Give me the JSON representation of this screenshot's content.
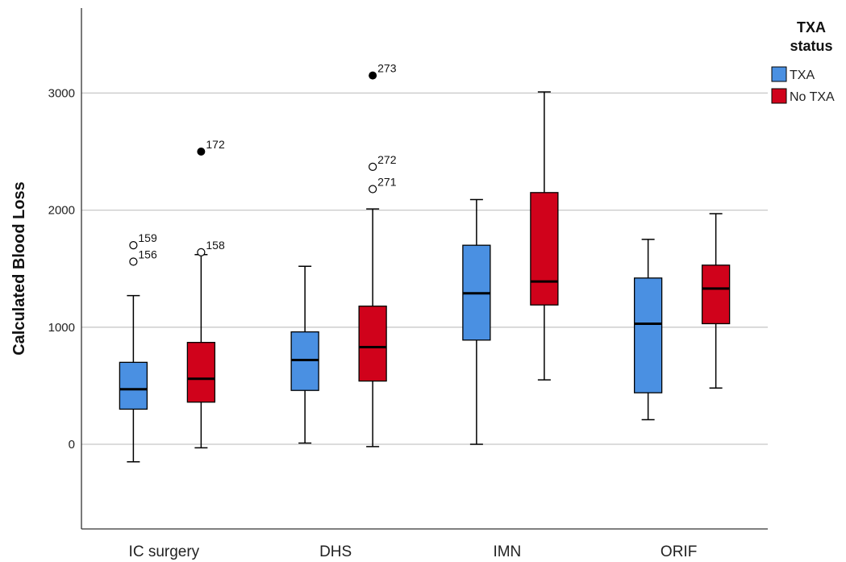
{
  "chart_data": {
    "type": "boxplot",
    "ylabel": "Calculated Blood Loss",
    "ylim": [
      -700,
      3750
    ],
    "yticks": [
      0,
      1000,
      2000,
      3000
    ],
    "grid": "horizontal",
    "legend": {
      "title_lines": [
        "TXA",
        "status"
      ],
      "placement": "right",
      "entries": [
        {
          "name": "TXA",
          "color": "#4a90e2"
        },
        {
          "name": "No TXA",
          "color": "#d0021b"
        }
      ]
    },
    "categories": [
      "IC surgery",
      "DHS",
      "IMN",
      "ORIF"
    ],
    "series": [
      {
        "name": "TXA",
        "color": "#4a90e2",
        "boxes": [
          {
            "min": -150,
            "q1": 300,
            "median": 470,
            "q3": 700,
            "max": 1270,
            "outliers": [
              {
                "value": 1700,
                "label": "159",
                "type": "open"
              },
              {
                "value": 1560,
                "label": "156",
                "type": "open"
              }
            ]
          },
          {
            "min": 10,
            "q1": 460,
            "median": 720,
            "q3": 960,
            "max": 1520,
            "outliers": []
          },
          {
            "min": 0,
            "q1": 890,
            "median": 1290,
            "q3": 1700,
            "max": 2090,
            "outliers": []
          },
          {
            "min": 210,
            "q1": 440,
            "median": 1030,
            "q3": 1420,
            "max": 1750,
            "outliers": []
          }
        ]
      },
      {
        "name": "No TXA",
        "color": "#d0021b",
        "boxes": [
          {
            "min": -30,
            "q1": 360,
            "median": 560,
            "q3": 870,
            "max": 1620,
            "outliers": [
              {
                "value": 1640,
                "label": "158",
                "type": "open"
              },
              {
                "value": 2500,
                "label": "172",
                "type": "filled"
              }
            ]
          },
          {
            "min": -20,
            "q1": 540,
            "median": 830,
            "q3": 1180,
            "max": 2010,
            "outliers": [
              {
                "value": 2180,
                "label": "271",
                "type": "open"
              },
              {
                "value": 2370,
                "label": "272",
                "type": "open"
              },
              {
                "value": 3150,
                "label": "273",
                "type": "filled"
              }
            ]
          },
          {
            "min": 550,
            "q1": 1190,
            "median": 1390,
            "q3": 2150,
            "max": 3010,
            "outliers": []
          },
          {
            "min": 480,
            "q1": 1030,
            "median": 1330,
            "q3": 1530,
            "max": 1970,
            "outliers": []
          }
        ]
      }
    ]
  }
}
